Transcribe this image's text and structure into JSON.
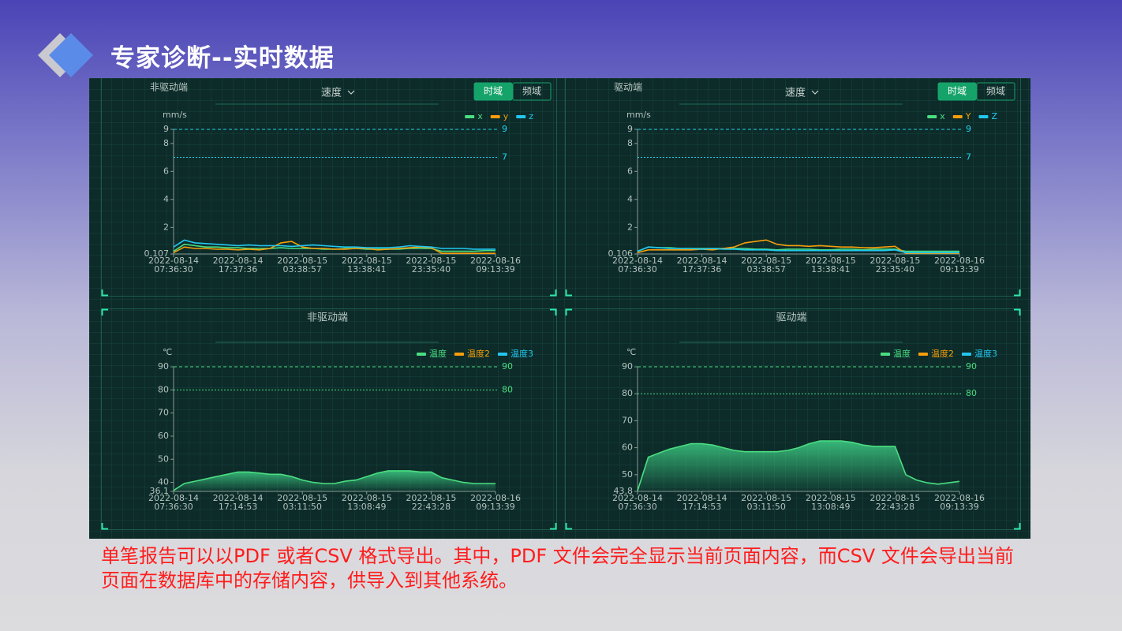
{
  "title": "专家诊断--实时数据",
  "note": "单笔报告可以以PDF 或者CSV 格式导出。其中，PDF 文件会完全显示当前页面内容，而CSV 文件会导出当前页面在数据库中的存储内容，供导入到其他系统。",
  "chart_data": [
    {
      "type": "line",
      "title": "非驱动端",
      "selector": "速度",
      "tabs": [
        "时域",
        "频域"
      ],
      "y_unit": "mm/s",
      "x": [
        0,
        2,
        4,
        6,
        8,
        10,
        12,
        14,
        16,
        18,
        20,
        22,
        24,
        26,
        28,
        30,
        32,
        34,
        36,
        38,
        40,
        42,
        44,
        46,
        48,
        50,
        52,
        54,
        56,
        58,
        60
      ],
      "series": [
        {
          "name": "x",
          "color": "#4ade80",
          "values": [
            0.3,
            0.8,
            0.7,
            0.6,
            0.6,
            0.55,
            0.55,
            0.5,
            0.5,
            0.5,
            0.55,
            0.5,
            0.5,
            0.5,
            0.45,
            0.45,
            0.5,
            0.5,
            0.45,
            0.45,
            0.45,
            0.45,
            0.5,
            0.5,
            0.5,
            0.3,
            0.3,
            0.3,
            0.3,
            0.35,
            0.35
          ]
        },
        {
          "name": "y",
          "color": "#f59e0b",
          "values": [
            0.2,
            0.6,
            0.5,
            0.5,
            0.45,
            0.45,
            0.4,
            0.45,
            0.4,
            0.5,
            0.9,
            1.0,
            0.6,
            0.5,
            0.5,
            0.45,
            0.45,
            0.5,
            0.5,
            0.4,
            0.45,
            0.5,
            0.55,
            0.6,
            0.55,
            0.15,
            0.15,
            0.15,
            0.15,
            0.15,
            0.15
          ]
        },
        {
          "name": "z",
          "color": "#22c7f0",
          "values": [
            0.6,
            1.1,
            0.9,
            0.85,
            0.8,
            0.75,
            0.7,
            0.75,
            0.7,
            0.7,
            0.7,
            0.65,
            0.7,
            0.75,
            0.7,
            0.65,
            0.6,
            0.6,
            0.55,
            0.55,
            0.55,
            0.6,
            0.7,
            0.65,
            0.6,
            0.5,
            0.5,
            0.5,
            0.45,
            0.45,
            0.45
          ]
        }
      ],
      "xlim": [
        0,
        60
      ],
      "xticks": [
        {
          "value": 0,
          "label": "2022-08-14 07:36:30"
        },
        {
          "value": 12,
          "label": "2022-08-14 17:37:36"
        },
        {
          "value": 24,
          "label": "2022-08-15 03:38:57"
        },
        {
          "value": 36,
          "label": "2022-08-15 13:38:41"
        },
        {
          "value": 48,
          "label": "2022-08-15 23:35:40"
        },
        {
          "value": 60,
          "label": "2022-08-16 09:13:39"
        }
      ],
      "ylim": [
        0.107,
        9
      ],
      "yticks": [
        0.107,
        2,
        4,
        6,
        8,
        9
      ],
      "mark_lines": [
        9,
        7
      ],
      "mark_color": "#22d3ee"
    },
    {
      "type": "line",
      "title": "驱动端",
      "selector": "速度",
      "tabs": [
        "时域",
        "频域"
      ],
      "y_unit": "mm/s",
      "x": [
        0,
        2,
        4,
        6,
        8,
        10,
        12,
        14,
        16,
        18,
        20,
        22,
        24,
        26,
        28,
        30,
        32,
        34,
        36,
        38,
        40,
        42,
        44,
        46,
        48,
        50,
        52,
        54,
        56,
        58,
        60
      ],
      "series": [
        {
          "name": "x",
          "color": "#4ade80",
          "values": [
            0.3,
            0.6,
            0.55,
            0.55,
            0.5,
            0.5,
            0.5,
            0.5,
            0.5,
            0.5,
            0.5,
            0.45,
            0.45,
            0.4,
            0.45,
            0.45,
            0.45,
            0.4,
            0.4,
            0.45,
            0.45,
            0.4,
            0.45,
            0.45,
            0.45,
            0.3,
            0.3,
            0.3,
            0.3,
            0.3,
            0.3
          ]
        },
        {
          "name": "Y",
          "color": "#f59e0b",
          "values": [
            0.2,
            0.4,
            0.4,
            0.4,
            0.4,
            0.4,
            0.45,
            0.4,
            0.5,
            0.6,
            0.9,
            1.0,
            1.1,
            0.8,
            0.7,
            0.7,
            0.65,
            0.7,
            0.65,
            0.6,
            0.6,
            0.55,
            0.55,
            0.6,
            0.65,
            0.15,
            0.15,
            0.15,
            0.15,
            0.15,
            0.15
          ]
        },
        {
          "name": "Z",
          "color": "#22c7f0",
          "values": [
            0.3,
            0.6,
            0.55,
            0.5,
            0.5,
            0.5,
            0.45,
            0.5,
            0.45,
            0.45,
            0.4,
            0.4,
            0.4,
            0.35,
            0.35,
            0.35,
            0.35,
            0.35,
            0.35,
            0.35,
            0.35,
            0.35,
            0.35,
            0.35,
            0.4,
            0.2,
            0.2,
            0.2,
            0.2,
            0.2,
            0.2
          ]
        }
      ],
      "xlim": [
        0,
        60
      ],
      "xticks": [
        {
          "value": 0,
          "label": "2022-08-14 07:36:30"
        },
        {
          "value": 12,
          "label": "2022-08-14 17:37:36"
        },
        {
          "value": 24,
          "label": "2022-08-15 03:38:57"
        },
        {
          "value": 36,
          "label": "2022-08-15 13:38:41"
        },
        {
          "value": 48,
          "label": "2022-08-15 23:35:40"
        },
        {
          "value": 60,
          "label": "2022-08-16 09:13:39"
        }
      ],
      "ylim": [
        0.106,
        9
      ],
      "yticks": [
        0.106,
        2,
        4,
        6,
        8,
        9
      ],
      "mark_lines": [
        9,
        7
      ],
      "mark_color": "#22d3ee"
    },
    {
      "type": "area",
      "title": "非驱动端",
      "y_unit": "℃",
      "x": [
        0,
        2,
        4,
        6,
        8,
        10,
        12,
        14,
        16,
        18,
        20,
        22,
        24,
        26,
        28,
        30,
        32,
        34,
        36,
        38,
        40,
        42,
        44,
        46,
        48,
        50,
        52,
        54,
        56,
        58,
        60
      ],
      "series": [
        {
          "name": "温度",
          "color": "#4ade80",
          "values": [
            36.5,
            39.5,
            40.5,
            41.5,
            42.5,
            43.5,
            44.5,
            44.5,
            44,
            43.5,
            43.5,
            42.5,
            41,
            40,
            39.5,
            39.5,
            40.5,
            41,
            42.5,
            44,
            45,
            45,
            45,
            44.5,
            44.5,
            42,
            41,
            40,
            39.5,
            39.5,
            39.5
          ]
        },
        {
          "name": "温度2",
          "color": "#f59e0b",
          "values": [
            null,
            null,
            null,
            null,
            null,
            null,
            null,
            null,
            null,
            null,
            null,
            null,
            null,
            null,
            null,
            null,
            null,
            null,
            null,
            null,
            null,
            null,
            null,
            null,
            null,
            null,
            null,
            null,
            null,
            null,
            null
          ]
        },
        {
          "name": "温度3",
          "color": "#22c7f0",
          "values": [
            null,
            null,
            null,
            null,
            null,
            null,
            null,
            null,
            null,
            null,
            null,
            null,
            null,
            null,
            null,
            null,
            null,
            null,
            null,
            null,
            null,
            null,
            null,
            null,
            null,
            null,
            null,
            null,
            null,
            null,
            null
          ]
        }
      ],
      "xlim": [
        0,
        60
      ],
      "xticks": [
        {
          "value": 0,
          "label": "2022-08-14 07:36:30"
        },
        {
          "value": 12,
          "label": "2022-08-14 17:14:53"
        },
        {
          "value": 24,
          "label": "2022-08-15 03:11:50"
        },
        {
          "value": 36,
          "label": "2022-08-15 13:08:49"
        },
        {
          "value": 48,
          "label": "2022-08-15 22:43:28"
        },
        {
          "value": 60,
          "label": "2022-08-16 09:13:39"
        }
      ],
      "ylim": [
        36.1,
        90
      ],
      "yticks": [
        36.1,
        40,
        50,
        60,
        70,
        80,
        90
      ],
      "mark_lines": [
        90,
        80
      ],
      "mark_color": "#4ade80"
    },
    {
      "type": "area",
      "title": "驱动端",
      "y_unit": "℃",
      "x": [
        0,
        2,
        4,
        6,
        8,
        10,
        12,
        14,
        16,
        18,
        20,
        22,
        24,
        26,
        28,
        30,
        32,
        34,
        36,
        38,
        40,
        42,
        44,
        46,
        48,
        50,
        52,
        54,
        56,
        58,
        60
      ],
      "series": [
        {
          "name": "温度",
          "color": "#4ade80",
          "values": [
            44,
            56.5,
            58,
            59.5,
            60.5,
            61.5,
            61.5,
            61,
            60,
            59,
            58.5,
            58.5,
            58.5,
            58.5,
            59,
            60,
            61.5,
            62.5,
            62.5,
            62.5,
            62,
            61,
            60.5,
            60.5,
            60.5,
            50,
            48,
            47,
            46.5,
            47,
            47.5
          ]
        },
        {
          "name": "温度2",
          "color": "#f59e0b",
          "values": [
            null,
            null,
            null,
            null,
            null,
            null,
            null,
            null,
            null,
            null,
            null,
            null,
            null,
            null,
            null,
            null,
            null,
            null,
            null,
            null,
            null,
            null,
            null,
            null,
            null,
            null,
            null,
            null,
            null,
            null,
            null
          ]
        },
        {
          "name": "温度3",
          "color": "#22c7f0",
          "values": [
            null,
            null,
            null,
            null,
            null,
            null,
            null,
            null,
            null,
            null,
            null,
            null,
            null,
            null,
            null,
            null,
            null,
            null,
            null,
            null,
            null,
            null,
            null,
            null,
            null,
            null,
            null,
            null,
            null,
            null,
            null
          ]
        }
      ],
      "xlim": [
        0,
        60
      ],
      "xticks": [
        {
          "value": 0,
          "label": "2022-08-14 07:36:30"
        },
        {
          "value": 12,
          "label": "2022-08-14 17:14:53"
        },
        {
          "value": 24,
          "label": "2022-08-15 03:11:50"
        },
        {
          "value": 36,
          "label": "2022-08-15 13:08:49"
        },
        {
          "value": 48,
          "label": "2022-08-15 22:43:28"
        },
        {
          "value": 60,
          "label": "2022-08-16 09:13:39"
        }
      ],
      "ylim": [
        43.8,
        90
      ],
      "yticks": [
        43.8,
        50,
        60,
        70,
        80,
        90
      ],
      "mark_lines": [
        90,
        80
      ],
      "mark_color": "#4ade80"
    }
  ]
}
